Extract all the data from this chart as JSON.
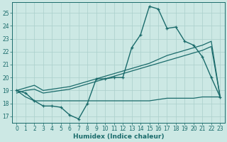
{
  "xlabel": "Humidex (Indice chaleur)",
  "bg_color": "#cce8e4",
  "line_color": "#1a6b6b",
  "grid_color": "#aacfcb",
  "xlim": [
    -0.5,
    23.5
  ],
  "ylim": [
    16.5,
    25.8
  ],
  "xticks": [
    0,
    1,
    2,
    3,
    4,
    5,
    6,
    7,
    8,
    9,
    10,
    11,
    12,
    13,
    14,
    15,
    16,
    17,
    18,
    19,
    20,
    21,
    22,
    23
  ],
  "yticks": [
    17,
    18,
    19,
    20,
    21,
    22,
    23,
    24,
    25
  ],
  "line1_x": [
    0,
    1,
    2,
    3,
    4,
    5,
    6,
    7,
    8,
    9,
    10,
    11,
    12,
    13,
    14,
    15,
    16,
    17,
    18,
    19,
    20,
    21,
    22,
    23
  ],
  "line1_y": [
    19.0,
    18.8,
    18.2,
    17.8,
    17.8,
    17.7,
    17.1,
    16.8,
    18.0,
    19.9,
    19.9,
    20.0,
    20.0,
    22.3,
    23.3,
    25.5,
    25.3,
    23.8,
    23.9,
    22.8,
    22.5,
    21.6,
    20.0,
    18.5
  ],
  "line2_x": [
    0,
    1,
    2,
    3,
    4,
    5,
    6,
    7,
    8,
    9,
    10,
    11,
    12,
    13,
    14,
    15,
    16,
    17,
    18,
    19,
    20,
    21,
    22,
    23
  ],
  "line2_y": [
    19.0,
    19.2,
    19.4,
    19.0,
    19.1,
    19.2,
    19.3,
    19.5,
    19.7,
    19.9,
    20.1,
    20.3,
    20.5,
    20.7,
    20.9,
    21.1,
    21.4,
    21.7,
    21.9,
    22.1,
    22.3,
    22.5,
    22.8,
    18.5
  ],
  "line3_x": [
    0,
    1,
    2,
    3,
    4,
    5,
    6,
    7,
    8,
    9,
    10,
    11,
    12,
    13,
    14,
    15,
    16,
    17,
    18,
    19,
    20,
    21,
    22,
    23
  ],
  "line3_y": [
    18.8,
    19.0,
    19.1,
    18.8,
    18.9,
    19.0,
    19.1,
    19.3,
    19.5,
    19.7,
    19.9,
    20.1,
    20.3,
    20.5,
    20.7,
    20.9,
    21.1,
    21.3,
    21.5,
    21.7,
    21.9,
    22.1,
    22.4,
    18.5
  ],
  "line4_x": [
    0,
    1,
    2,
    3,
    4,
    5,
    6,
    7,
    8,
    9,
    10,
    11,
    12,
    13,
    14,
    15,
    16,
    17,
    18,
    19,
    20,
    21,
    22,
    23
  ],
  "line4_y": [
    19.0,
    18.5,
    18.2,
    18.2,
    18.2,
    18.2,
    18.2,
    18.2,
    18.2,
    18.2,
    18.2,
    18.2,
    18.2,
    18.2,
    18.2,
    18.2,
    18.3,
    18.4,
    18.4,
    18.4,
    18.4,
    18.5,
    18.5,
    18.5
  ]
}
